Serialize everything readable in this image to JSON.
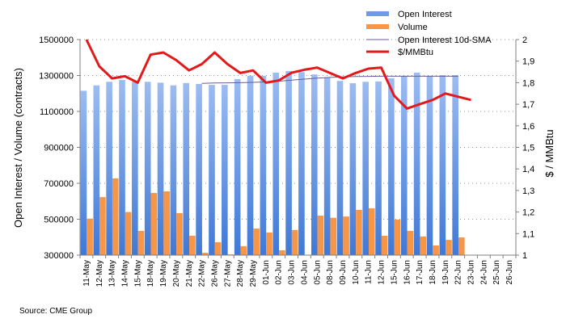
{
  "chart_data": {
    "type": "bar",
    "categories": [
      "11-May",
      "12-May",
      "13-May",
      "14-May",
      "15-May",
      "18-May",
      "19-May",
      "20-May",
      "21-May",
      "22-May",
      "26-May",
      "27-May",
      "28-May",
      "29-May",
      "01-Jun",
      "02-Jun",
      "03-Jun",
      "04-Jun",
      "05-Jun",
      "08-Jun",
      "09-Jun",
      "10-Jun",
      "11-Jun",
      "12-Jun",
      "15-Jun",
      "16-Jun",
      "17-Jun",
      "18-Jun",
      "19-Jun",
      "22-Jun",
      "23-Jun",
      "24-Jun",
      "25-Jun",
      "26-Jun"
    ],
    "series": [
      {
        "name": "Open Interest",
        "type": "bar",
        "axis": "left",
        "color": "#6f9be6",
        "values": [
          1215000,
          1245000,
          1265000,
          1275000,
          1265000,
          1265000,
          1260000,
          1245000,
          1258000,
          1253000,
          1248000,
          1248000,
          1280000,
          1298000,
          1298000,
          1316000,
          1325000,
          1319000,
          1306000,
          1290000,
          1270000,
          1257000,
          1265000,
          1267000,
          1285000,
          1298000,
          1316000,
          1298000,
          1302000,
          1302000,
          null,
          null,
          null,
          null
        ]
      },
      {
        "name": "Volume",
        "type": "bar",
        "axis": "left",
        "color": "#f79646",
        "values": [
          503000,
          623000,
          727000,
          540000,
          435000,
          646000,
          655000,
          534000,
          408000,
          313000,
          372000,
          304000,
          350000,
          448000,
          426000,
          327000,
          440000,
          null,
          520000,
          508000,
          515000,
          552000,
          561000,
          408000,
          498000,
          435000,
          404000,
          354000,
          385000,
          399000,
          null,
          null,
          null,
          null
        ]
      },
      {
        "name": "Open Interest 10d-SMA",
        "type": "line",
        "axis": "left",
        "color": "#6b5b95",
        "values": [
          null,
          null,
          null,
          null,
          null,
          null,
          null,
          null,
          null,
          1256000,
          1258000,
          1259000,
          1260000,
          1262000,
          1264000,
          1268000,
          1274000,
          1280000,
          1285000,
          1289000,
          1292000,
          1294000,
          1295000,
          1296000,
          1296000,
          1296000,
          1296000,
          1296000,
          1296000,
          1296000,
          null,
          null,
          null,
          null
        ]
      },
      {
        "name": "$/MMBtu",
        "type": "line",
        "axis": "right",
        "color": "#e31a1c",
        "values": [
          2.0,
          1.876,
          1.82,
          1.83,
          1.8,
          1.93,
          1.94,
          1.905,
          1.857,
          1.886,
          1.94,
          1.886,
          1.845,
          1.857,
          1.8,
          1.81,
          1.846,
          1.86,
          1.87,
          1.845,
          1.82,
          1.845,
          1.865,
          1.87,
          1.74,
          1.68,
          1.7,
          1.72,
          1.75,
          1.735,
          1.72,
          null,
          null,
          null
        ]
      }
    ],
    "title": "",
    "xlabel": "",
    "ylabel": "Open Interest / Volume (contracts)",
    "y2label": "$ / MMBtu",
    "ylim": [
      300000,
      1500000
    ],
    "y2lim": [
      1,
      2
    ],
    "yticks": [
      "1500000",
      "1300000",
      "1100000",
      "900000",
      "700000",
      "500000",
      "300000"
    ],
    "y2ticks": [
      "2",
      "1,9",
      "1,8",
      "1,7",
      "1,6",
      "1,5",
      "1,4",
      "1,3",
      "1,2",
      "1,1",
      "1"
    ],
    "grid": true,
    "legend_position": "top-right"
  },
  "legend": {
    "items": [
      "Open Interest",
      "Volume",
      "Open Interest 10d-SMA",
      "$/MMBtu"
    ]
  },
  "source": "Source: CME Group"
}
